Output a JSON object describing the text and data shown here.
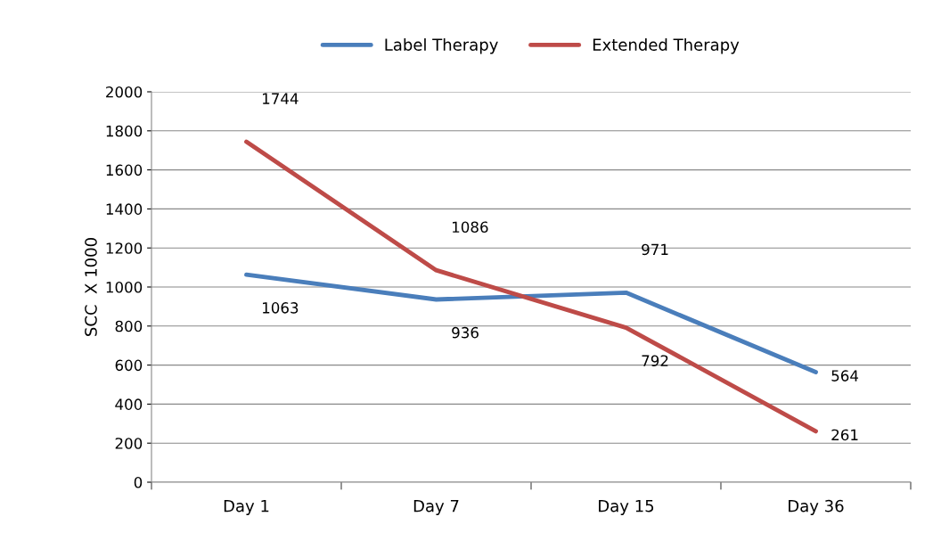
{
  "chart_data": {
    "type": "line",
    "ylabel": "SCC  X 1000",
    "categories": [
      "Day 1",
      "Day 7",
      "Day 15",
      "Day 36"
    ],
    "series": [
      {
        "name": "Label Therapy",
        "color": "#4a7ebb",
        "values": [
          1063,
          936,
          971,
          564
        ]
      },
      {
        "name": "Extended Therapy",
        "color": "#be4b48",
        "values": [
          1744,
          1086,
          792,
          261
        ]
      }
    ],
    "ylim": [
      0,
      2000
    ],
    "yticks": [
      0,
      200,
      400,
      600,
      800,
      1000,
      1200,
      1400,
      1600,
      1800,
      2000
    ],
    "grid": "y",
    "legend": "top",
    "data_labels": true,
    "marker": "none",
    "line_style": "solid"
  }
}
